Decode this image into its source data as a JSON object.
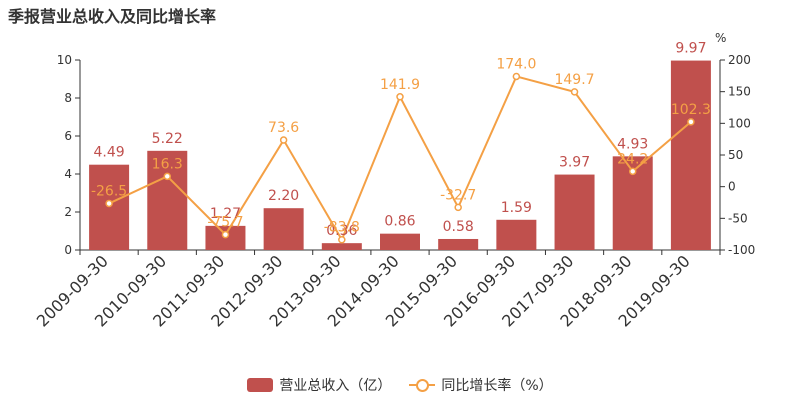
{
  "chart_data": {
    "type": "bar",
    "title": "季报营业总收入及同比增长率",
    "categories": [
      "2009-09-30",
      "2010-09-30",
      "2011-09-30",
      "2012-09-30",
      "2013-09-30",
      "2014-09-30",
      "2015-09-30",
      "2016-09-30",
      "2017-09-30",
      "2018-09-30",
      "2019-09-30"
    ],
    "series": [
      {
        "name": "营业总收入（亿）",
        "type": "bar",
        "axis": "left",
        "color": "#c0504d",
        "values": [
          4.49,
          5.22,
          1.27,
          2.2,
          0.36,
          0.86,
          0.58,
          1.59,
          3.97,
          4.93,
          9.97
        ],
        "labels": [
          "4.49",
          "5.22",
          "1.27",
          "2.20",
          "0.36",
          "0.86",
          "0.58",
          "1.59",
          "3.97",
          "4.93",
          "9.97"
        ]
      },
      {
        "name": "同比增长率（%）",
        "type": "line",
        "axis": "right",
        "color": "#f4a045",
        "values": [
          -26.5,
          16.3,
          -75.7,
          73.6,
          -83.8,
          141.9,
          -32.7,
          174.0,
          149.7,
          24.2,
          102.3
        ],
        "labels": [
          "-26.5",
          "16.3",
          "-75.7",
          "73.6",
          "-83.8",
          "141.9",
          "-32.7",
          "174.0",
          "149.7",
          "24.2",
          "102.3"
        ]
      }
    ],
    "y_left": {
      "ylim": [
        0,
        10
      ],
      "ticks": [
        0,
        2,
        4,
        6,
        8,
        10
      ]
    },
    "y_right": {
      "unit": "%",
      "ylim": [
        -100,
        200
      ],
      "ticks": [
        -100,
        -50,
        0,
        50,
        100,
        150,
        200
      ]
    },
    "grid": false,
    "legend": "bottom"
  }
}
